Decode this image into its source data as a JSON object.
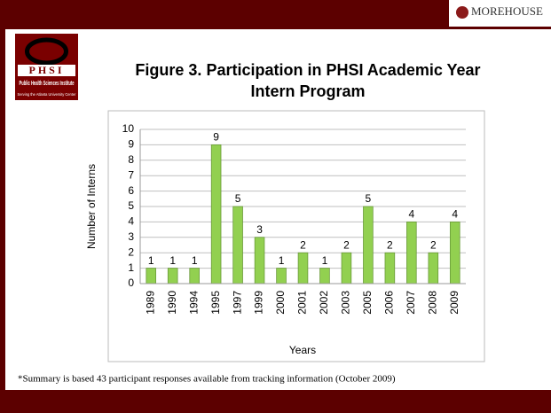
{
  "header": {
    "brand": "MOREHOUSE",
    "logo_acronym": "PHSI",
    "logo_name": "Public Health Sciences Institute",
    "logo_tagline": "Serving the Atlanta University Center"
  },
  "chart_data": {
    "type": "bar",
    "title": [
      "Figure 3. Participation in PHSI Academic Year",
      "Intern Program"
    ],
    "x_label": "Years",
    "y_label": "Number of Interns",
    "categories": [
      "1989",
      "1990",
      "1994",
      "1995",
      "1997",
      "1999",
      "2000",
      "2001",
      "2002",
      "2003",
      "2005",
      "2006",
      "2007",
      "2008",
      "2009"
    ],
    "values": [
      1,
      1,
      1,
      9,
      5,
      3,
      1,
      2,
      1,
      2,
      5,
      2,
      4,
      2,
      4
    ],
    "color": "#92d050",
    "ylim": [
      0,
      10
    ],
    "yticks": [
      0,
      1,
      2,
      3,
      4,
      5,
      6,
      7,
      8,
      9,
      10
    ],
    "grid": true
  },
  "footnote": "*Summary is based 43 participant responses available from tracking information (October 2009)"
}
